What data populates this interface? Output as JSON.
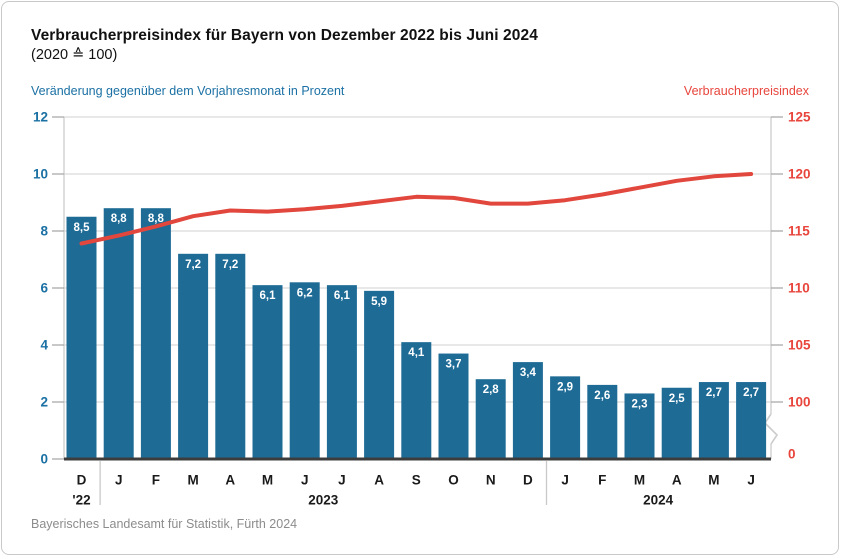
{
  "header": {
    "title": "Verbraucherpreisindex für Bayern von Dezember 2022 bis Juni 2024",
    "subtitle": "(2020 ≙ 100)"
  },
  "footer": {
    "source": "Bayerisches Landesamt für Statistik, Fürth 2024"
  },
  "colors": {
    "bar": "#1e6b96",
    "line": "#e2473d",
    "left_axis_text": "#1b70a4",
    "right_axis_text": "#e8453c",
    "grid": "#d9d9d9",
    "plot_border": "#cccccc",
    "tick": "#aaaaaa",
    "axis_baseline": "#3c3c3c",
    "month_text": "#1a1a1a",
    "year_text": "#1a1a1a",
    "bar_label": "#ffffff",
    "separator": "#c9c9c9"
  },
  "chart_data": {
    "type": "bar",
    "overlay": "line",
    "grid": true,
    "title": "Verbraucherpreisindex für Bayern von Dezember 2022 bis Juni 2024",
    "subtitle": "(2020 ≙ 100)",
    "categories": [
      "D",
      "J",
      "F",
      "M",
      "A",
      "M",
      "J",
      "J",
      "A",
      "S",
      "O",
      "N",
      "D",
      "J",
      "F",
      "M",
      "A",
      "M",
      "J"
    ],
    "bar_series": {
      "name": "Veränderung gegenüber dem Vorjahresmonat in Prozent",
      "values": [
        8.5,
        8.8,
        8.8,
        7.2,
        7.2,
        6.1,
        6.2,
        6.1,
        5.9,
        4.1,
        3.7,
        2.8,
        3.4,
        2.9,
        2.6,
        2.3,
        2.5,
        2.7,
        2.7
      ],
      "labels": [
        "8,5",
        "8,8",
        "8,8",
        "7,2",
        "7,2",
        "6,1",
        "6,2",
        "6,1",
        "5,9",
        "4,1",
        "3,7",
        "2,8",
        "3,4",
        "2,9",
        "2,6",
        "2,3",
        "2,5",
        "2,7",
        "2,7"
      ]
    },
    "line_series": {
      "name": "Verbraucherpreisindex",
      "values": [
        113.9,
        114.6,
        115.4,
        116.3,
        116.8,
        116.7,
        116.9,
        117.2,
        117.6,
        118.0,
        117.9,
        117.4,
        117.4,
        117.7,
        118.2,
        118.8,
        119.4,
        119.8,
        120.0
      ]
    },
    "left_axis": {
      "ticks": [
        0,
        2,
        4,
        6,
        8,
        10,
        12
      ],
      "min": 0,
      "max": 12
    },
    "right_axis": {
      "ticks": [
        100,
        105,
        110,
        115,
        120,
        125
      ],
      "min": 100,
      "max": 125,
      "has_break": true,
      "zero_label": "0"
    },
    "x_axis": {
      "first_year_label": "'22",
      "year_groups": [
        {
          "label": "2023",
          "from": 1,
          "to": 12
        },
        {
          "label": "2024",
          "from": 13,
          "to": 18
        }
      ]
    }
  }
}
